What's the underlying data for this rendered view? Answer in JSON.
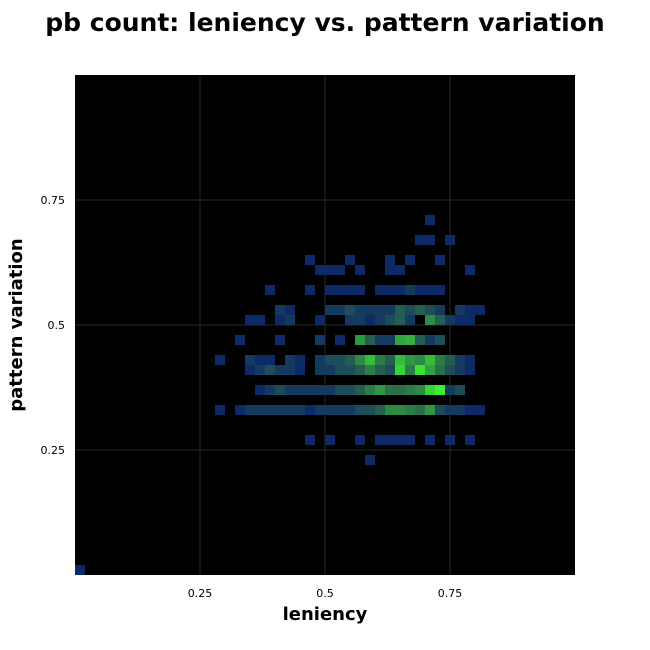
{
  "chart_data": {
    "type": "heatmap",
    "title": "pb count: leniency vs. pattern variation",
    "xlabel": "leniency",
    "ylabel": "pattern variation",
    "xlim": [
      0,
      1
    ],
    "ylim": [
      0,
      1
    ],
    "xticks": [
      0.25,
      0.5,
      0.75
    ],
    "xtick_labels": [
      "0.25",
      "0.5",
      "0.75"
    ],
    "yticks": [
      0.25,
      0.5,
      0.75
    ],
    "ytick_labels": [
      "0.25",
      "0.5",
      "0.75"
    ],
    "grid": true,
    "bin_size": 0.02,
    "colors": {
      "background": "#000000",
      "grid": "#2a2a2a",
      "low": "#0d2a66",
      "mid": "#2a6f4a",
      "high": "#3cf030"
    },
    "cells": [
      [
        0.0,
        0.0,
        0.3
      ],
      [
        0.7,
        0.7,
        0.3
      ],
      [
        0.68,
        0.66,
        0.3
      ],
      [
        0.7,
        0.66,
        0.3
      ],
      [
        0.74,
        0.66,
        0.3
      ],
      [
        0.46,
        0.62,
        0.3
      ],
      [
        0.54,
        0.62,
        0.3
      ],
      [
        0.62,
        0.62,
        0.3
      ],
      [
        0.66,
        0.62,
        0.3
      ],
      [
        0.72,
        0.62,
        0.3
      ],
      [
        0.48,
        0.6,
        0.3
      ],
      [
        0.5,
        0.6,
        0.3
      ],
      [
        0.52,
        0.6,
        0.3
      ],
      [
        0.56,
        0.6,
        0.3
      ],
      [
        0.62,
        0.6,
        0.3
      ],
      [
        0.64,
        0.6,
        0.3
      ],
      [
        0.78,
        0.6,
        0.3
      ],
      [
        0.38,
        0.56,
        0.3
      ],
      [
        0.46,
        0.56,
        0.3
      ],
      [
        0.5,
        0.56,
        0.3
      ],
      [
        0.52,
        0.56,
        0.3
      ],
      [
        0.54,
        0.56,
        0.3
      ],
      [
        0.56,
        0.56,
        0.3
      ],
      [
        0.6,
        0.56,
        0.3
      ],
      [
        0.62,
        0.56,
        0.3
      ],
      [
        0.64,
        0.56,
        0.3
      ],
      [
        0.66,
        0.56,
        0.35
      ],
      [
        0.68,
        0.56,
        0.3
      ],
      [
        0.7,
        0.56,
        0.3
      ],
      [
        0.72,
        0.56,
        0.3
      ],
      [
        0.4,
        0.52,
        0.35
      ],
      [
        0.42,
        0.52,
        0.3
      ],
      [
        0.5,
        0.52,
        0.35
      ],
      [
        0.52,
        0.52,
        0.35
      ],
      [
        0.54,
        0.52,
        0.4
      ],
      [
        0.56,
        0.52,
        0.35
      ],
      [
        0.58,
        0.52,
        0.35
      ],
      [
        0.6,
        0.52,
        0.35
      ],
      [
        0.62,
        0.52,
        0.35
      ],
      [
        0.64,
        0.52,
        0.45
      ],
      [
        0.66,
        0.52,
        0.4
      ],
      [
        0.68,
        0.52,
        0.45
      ],
      [
        0.7,
        0.52,
        0.4
      ],
      [
        0.72,
        0.52,
        0.35
      ],
      [
        0.76,
        0.52,
        0.35
      ],
      [
        0.78,
        0.52,
        0.3
      ],
      [
        0.8,
        0.52,
        0.3
      ],
      [
        0.34,
        0.5,
        0.3
      ],
      [
        0.36,
        0.5,
        0.3
      ],
      [
        0.4,
        0.5,
        0.3
      ],
      [
        0.42,
        0.5,
        0.35
      ],
      [
        0.48,
        0.5,
        0.3
      ],
      [
        0.54,
        0.5,
        0.35
      ],
      [
        0.56,
        0.5,
        0.35
      ],
      [
        0.58,
        0.5,
        0.3
      ],
      [
        0.6,
        0.5,
        0.35
      ],
      [
        0.62,
        0.5,
        0.4
      ],
      [
        0.64,
        0.5,
        0.45
      ],
      [
        0.66,
        0.5,
        0.35
      ],
      [
        0.7,
        0.5,
        0.6
      ],
      [
        0.72,
        0.5,
        0.45
      ],
      [
        0.74,
        0.5,
        0.35
      ],
      [
        0.76,
        0.5,
        0.3
      ],
      [
        0.78,
        0.5,
        0.3
      ],
      [
        0.32,
        0.46,
        0.3
      ],
      [
        0.4,
        0.46,
        0.3
      ],
      [
        0.48,
        0.46,
        0.35
      ],
      [
        0.52,
        0.46,
        0.3
      ],
      [
        0.56,
        0.46,
        0.65
      ],
      [
        0.58,
        0.46,
        0.45
      ],
      [
        0.6,
        0.46,
        0.35
      ],
      [
        0.62,
        0.46,
        0.35
      ],
      [
        0.64,
        0.46,
        0.7
      ],
      [
        0.66,
        0.46,
        0.75
      ],
      [
        0.68,
        0.46,
        0.45
      ],
      [
        0.7,
        0.46,
        0.35
      ],
      [
        0.72,
        0.46,
        0.4
      ],
      [
        0.28,
        0.42,
        0.3
      ],
      [
        0.34,
        0.42,
        0.35
      ],
      [
        0.36,
        0.42,
        0.3
      ],
      [
        0.38,
        0.42,
        0.3
      ],
      [
        0.42,
        0.42,
        0.35
      ],
      [
        0.44,
        0.42,
        0.3
      ],
      [
        0.48,
        0.42,
        0.35
      ],
      [
        0.5,
        0.42,
        0.4
      ],
      [
        0.52,
        0.42,
        0.4
      ],
      [
        0.54,
        0.42,
        0.45
      ],
      [
        0.56,
        0.42,
        0.6
      ],
      [
        0.58,
        0.42,
        0.8
      ],
      [
        0.6,
        0.42,
        0.55
      ],
      [
        0.62,
        0.42,
        0.45
      ],
      [
        0.64,
        0.42,
        0.8
      ],
      [
        0.66,
        0.42,
        0.65
      ],
      [
        0.68,
        0.42,
        0.6
      ],
      [
        0.7,
        0.42,
        0.8
      ],
      [
        0.72,
        0.42,
        0.55
      ],
      [
        0.74,
        0.42,
        0.45
      ],
      [
        0.76,
        0.42,
        0.35
      ],
      [
        0.78,
        0.42,
        0.3
      ],
      [
        0.34,
        0.4,
        0.3
      ],
      [
        0.36,
        0.4,
        0.35
      ],
      [
        0.38,
        0.4,
        0.4
      ],
      [
        0.4,
        0.4,
        0.35
      ],
      [
        0.42,
        0.4,
        0.35
      ],
      [
        0.44,
        0.4,
        0.3
      ],
      [
        0.48,
        0.4,
        0.35
      ],
      [
        0.5,
        0.4,
        0.35
      ],
      [
        0.52,
        0.4,
        0.4
      ],
      [
        0.54,
        0.4,
        0.4
      ],
      [
        0.56,
        0.4,
        0.45
      ],
      [
        0.58,
        0.4,
        0.55
      ],
      [
        0.6,
        0.4,
        0.45
      ],
      [
        0.62,
        0.4,
        0.4
      ],
      [
        0.64,
        0.4,
        0.9
      ],
      [
        0.66,
        0.4,
        0.55
      ],
      [
        0.68,
        0.4,
        0.95
      ],
      [
        0.7,
        0.4,
        0.7
      ],
      [
        0.72,
        0.4,
        0.5
      ],
      [
        0.74,
        0.4,
        0.4
      ],
      [
        0.76,
        0.4,
        0.35
      ],
      [
        0.78,
        0.4,
        0.3
      ],
      [
        0.36,
        0.36,
        0.3
      ],
      [
        0.38,
        0.36,
        0.35
      ],
      [
        0.4,
        0.36,
        0.4
      ],
      [
        0.42,
        0.36,
        0.35
      ],
      [
        0.44,
        0.36,
        0.35
      ],
      [
        0.46,
        0.36,
        0.35
      ],
      [
        0.48,
        0.36,
        0.35
      ],
      [
        0.5,
        0.36,
        0.35
      ],
      [
        0.52,
        0.36,
        0.4
      ],
      [
        0.54,
        0.36,
        0.4
      ],
      [
        0.56,
        0.36,
        0.45
      ],
      [
        0.58,
        0.36,
        0.55
      ],
      [
        0.6,
        0.36,
        0.65
      ],
      [
        0.62,
        0.36,
        0.5
      ],
      [
        0.64,
        0.36,
        0.5
      ],
      [
        0.66,
        0.36,
        0.55
      ],
      [
        0.68,
        0.36,
        0.6
      ],
      [
        0.7,
        0.36,
        0.9
      ],
      [
        0.72,
        0.36,
        1.0
      ],
      [
        0.74,
        0.36,
        0.35
      ],
      [
        0.76,
        0.36,
        0.4
      ],
      [
        0.28,
        0.32,
        0.3
      ],
      [
        0.32,
        0.32,
        0.3
      ],
      [
        0.34,
        0.32,
        0.35
      ],
      [
        0.36,
        0.32,
        0.35
      ],
      [
        0.38,
        0.32,
        0.35
      ],
      [
        0.4,
        0.32,
        0.35
      ],
      [
        0.42,
        0.32,
        0.35
      ],
      [
        0.44,
        0.32,
        0.35
      ],
      [
        0.46,
        0.32,
        0.3
      ],
      [
        0.48,
        0.32,
        0.35
      ],
      [
        0.5,
        0.32,
        0.35
      ],
      [
        0.52,
        0.32,
        0.35
      ],
      [
        0.54,
        0.32,
        0.35
      ],
      [
        0.56,
        0.32,
        0.4
      ],
      [
        0.58,
        0.32,
        0.4
      ],
      [
        0.6,
        0.32,
        0.45
      ],
      [
        0.62,
        0.32,
        0.6
      ],
      [
        0.64,
        0.32,
        0.6
      ],
      [
        0.66,
        0.32,
        0.55
      ],
      [
        0.68,
        0.32,
        0.5
      ],
      [
        0.7,
        0.32,
        0.65
      ],
      [
        0.72,
        0.32,
        0.4
      ],
      [
        0.74,
        0.32,
        0.35
      ],
      [
        0.76,
        0.32,
        0.35
      ],
      [
        0.78,
        0.32,
        0.3
      ],
      [
        0.8,
        0.32,
        0.3
      ],
      [
        0.46,
        0.26,
        0.3
      ],
      [
        0.5,
        0.26,
        0.3
      ],
      [
        0.56,
        0.26,
        0.3
      ],
      [
        0.6,
        0.26,
        0.3
      ],
      [
        0.62,
        0.26,
        0.3
      ],
      [
        0.64,
        0.26,
        0.3
      ],
      [
        0.66,
        0.26,
        0.3
      ],
      [
        0.7,
        0.26,
        0.3
      ],
      [
        0.74,
        0.26,
        0.3
      ],
      [
        0.78,
        0.26,
        0.3
      ],
      [
        0.58,
        0.22,
        0.3
      ]
    ]
  }
}
